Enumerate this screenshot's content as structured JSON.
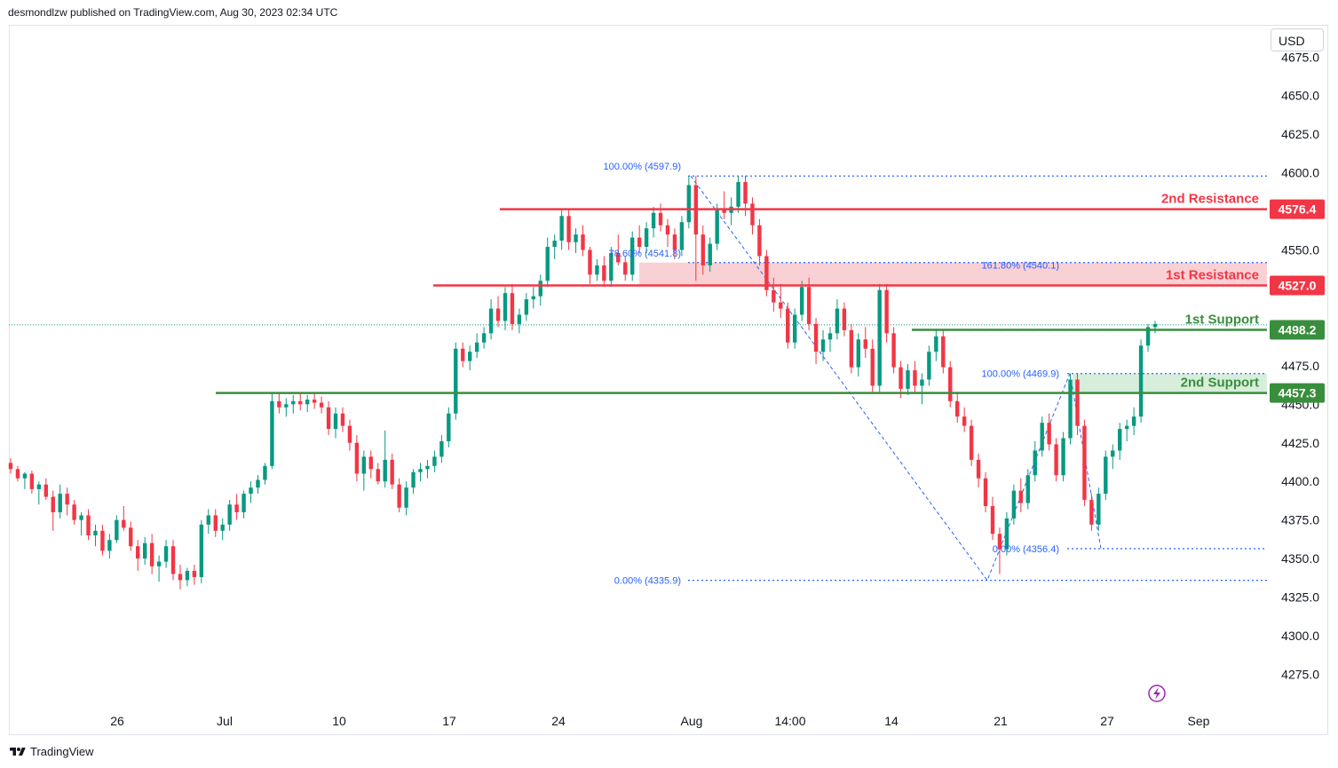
{
  "header": {
    "publisher_line": "desmondlzw published on TradingView.com, Aug 30, 2023 02:34 UTC"
  },
  "toolbar": {
    "currency_label": "USD"
  },
  "footer": {
    "brand_label": "TradingView"
  },
  "colors": {
    "up": "#089981",
    "down": "#f23645",
    "resistance": "#f23645",
    "support": "#388e3c",
    "fib": "#2962ff",
    "resistance_zone": "#f8c8cc",
    "support_zone": "#d3ecd6",
    "grid_text": "#131722"
  },
  "chart_data": {
    "type": "candlestick",
    "y_axis": {
      "ticks": [
        "4675.0",
        "4650.0",
        "4625.0",
        "4600.0",
        "4575.0",
        "4550.0",
        "4525.0",
        "4500.0",
        "4475.0",
        "4450.0",
        "4425.0",
        "4400.0",
        "4375.0",
        "4350.0",
        "4325.0",
        "4300.0",
        "4275.0"
      ],
      "range": [
        4262,
        4680
      ]
    },
    "x_axis": {
      "ticks": [
        "26",
        "Jul",
        "10",
        "17",
        "24",
        "Aug",
        "14:00",
        "14",
        "21",
        "27",
        "Sep"
      ]
    },
    "levels": [
      {
        "name": "2nd Resistance",
        "value": 4576.4,
        "label": "4576.4",
        "kind": "resistance"
      },
      {
        "name": "1st Resistance",
        "value": 4527.0,
        "label": "4527.0",
        "kind": "resistance"
      },
      {
        "name": "1st Support",
        "value": 4498.2,
        "label": "4498.2",
        "kind": "support"
      },
      {
        "name": "2nd Support",
        "value": 4457.3,
        "label": "4457.3",
        "kind": "support"
      }
    ],
    "zones": [
      {
        "kind": "resistance",
        "from": 4527.0,
        "to": 4541.8
      },
      {
        "kind": "support",
        "from": 4457.3,
        "to": 4469.9
      }
    ],
    "fib_labels": [
      {
        "text": "100.00% (4597.9)",
        "value": 4597.9
      },
      {
        "text": "78.60% (4541.8)",
        "value": 4541.8
      },
      {
        "text": "161.80% (4540.1)",
        "value": 4540.1
      },
      {
        "text": "100.00% (4469.9)",
        "value": 4469.9
      },
      {
        "text": "0.00% (4356.4)",
        "value": 4356.4
      },
      {
        "text": "0.00% (4335.9)",
        "value": 4335.9
      }
    ],
    "last_price": 4502.0,
    "candles": [
      [
        4412,
        4415,
        4405,
        4408
      ],
      [
        4408,
        4410,
        4400,
        4402
      ],
      [
        4402,
        4406,
        4395,
        4405
      ],
      [
        4405,
        4407,
        4392,
        4395
      ],
      [
        4395,
        4400,
        4385,
        4398
      ],
      [
        4398,
        4402,
        4388,
        4390
      ],
      [
        4390,
        4394,
        4368,
        4380
      ],
      [
        4380,
        4398,
        4376,
        4392
      ],
      [
        4392,
        4396,
        4378,
        4385
      ],
      [
        4385,
        4388,
        4372,
        4375
      ],
      [
        4375,
        4380,
        4365,
        4378
      ],
      [
        4378,
        4382,
        4362,
        4365
      ],
      [
        4365,
        4372,
        4358,
        4368
      ],
      [
        4368,
        4372,
        4352,
        4355
      ],
      [
        4355,
        4366,
        4350,
        4362
      ],
      [
        4362,
        4378,
        4360,
        4375
      ],
      [
        4375,
        4384,
        4368,
        4370
      ],
      [
        4370,
        4374,
        4355,
        4358
      ],
      [
        4358,
        4362,
        4342,
        4350
      ],
      [
        4350,
        4364,
        4346,
        4360
      ],
      [
        4360,
        4366,
        4340,
        4345
      ],
      [
        4345,
        4352,
        4335,
        4348
      ],
      [
        4348,
        4362,
        4344,
        4358
      ],
      [
        4358,
        4362,
        4336,
        4340
      ],
      [
        4340,
        4346,
        4330,
        4336
      ],
      [
        4336,
        4344,
        4332,
        4342
      ],
      [
        4342,
        4346,
        4333,
        4338
      ],
      [
        4338,
        4375,
        4334,
        4372
      ],
      [
        4372,
        4382,
        4366,
        4378
      ],
      [
        4378,
        4382,
        4364,
        4368
      ],
      [
        4368,
        4376,
        4362,
        4372
      ],
      [
        4372,
        4388,
        4368,
        4385
      ],
      [
        4385,
        4392,
        4375,
        4380
      ],
      [
        4380,
        4394,
        4376,
        4392
      ],
      [
        4392,
        4400,
        4386,
        4396
      ],
      [
        4396,
        4404,
        4392,
        4401
      ],
      [
        4401,
        4412,
        4398,
        4410
      ],
      [
        4410,
        4458,
        4408,
        4452
      ],
      [
        4452,
        4458,
        4444,
        4448
      ],
      [
        4448,
        4454,
        4442,
        4450
      ],
      [
        4450,
        4456,
        4444,
        4452
      ],
      [
        4452,
        4457,
        4446,
        4450
      ],
      [
        4450,
        4456,
        4445,
        4453
      ],
      [
        4453,
        4457,
        4447,
        4451
      ],
      [
        4451,
        4455,
        4444,
        4448
      ],
      [
        4448,
        4452,
        4430,
        4434
      ],
      [
        4434,
        4448,
        4428,
        4444
      ],
      [
        4444,
        4448,
        4432,
        4436
      ],
      [
        4436,
        4440,
        4420,
        4425
      ],
      [
        4425,
        4430,
        4400,
        4405
      ],
      [
        4405,
        4420,
        4394,
        4416
      ],
      [
        4416,
        4420,
        4402,
        4408
      ],
      [
        4408,
        4412,
        4398,
        4400
      ],
      [
        4400,
        4433,
        4396,
        4414
      ],
      [
        4414,
        4418,
        4395,
        4398
      ],
      [
        4398,
        4402,
        4380,
        4383
      ],
      [
        4383,
        4400,
        4378,
        4396
      ],
      [
        4396,
        4408,
        4392,
        4406
      ],
      [
        4406,
        4412,
        4400,
        4408
      ],
      [
        4408,
        4414,
        4402,
        4410
      ],
      [
        4410,
        4420,
        4406,
        4416
      ],
      [
        4416,
        4430,
        4412,
        4426
      ],
      [
        4426,
        4448,
        4422,
        4444
      ],
      [
        4444,
        4490,
        4440,
        4486
      ],
      [
        4486,
        4490,
        4474,
        4478
      ],
      [
        4478,
        4488,
        4472,
        4484
      ],
      [
        4484,
        4496,
        4480,
        4490
      ],
      [
        4490,
        4500,
        4486,
        4496
      ],
      [
        4496,
        4518,
        4492,
        4512
      ],
      [
        4512,
        4520,
        4500,
        4504
      ],
      [
        4504,
        4526,
        4498,
        4522
      ],
      [
        4522,
        4528,
        4498,
        4502
      ],
      [
        4502,
        4512,
        4496,
        4508
      ],
      [
        4508,
        4522,
        4504,
        4518
      ],
      [
        4518,
        4526,
        4512,
        4520
      ],
      [
        4520,
        4534,
        4514,
        4530
      ],
      [
        4530,
        4558,
        4526,
        4552
      ],
      [
        4552,
        4560,
        4544,
        4556
      ],
      [
        4556,
        4576,
        4550,
        4572
      ],
      [
        4572,
        4576,
        4550,
        4555
      ],
      [
        4555,
        4564,
        4548,
        4560
      ],
      [
        4560,
        4566,
        4546,
        4550
      ],
      [
        4550,
        4552,
        4528,
        4534
      ],
      [
        4534,
        4544,
        4530,
        4540
      ],
      [
        4540,
        4546,
        4526,
        4530
      ],
      [
        4530,
        4552,
        4526,
        4548
      ],
      [
        4548,
        4560,
        4540,
        4542
      ],
      [
        4542,
        4546,
        4530,
        4534
      ],
      [
        4534,
        4562,
        4530,
        4558
      ],
      [
        4558,
        4566,
        4548,
        4552
      ],
      [
        4552,
        4568,
        4548,
        4564
      ],
      [
        4564,
        4578,
        4558,
        4574
      ],
      [
        4574,
        4580,
        4562,
        4566
      ],
      [
        4566,
        4570,
        4552,
        4560
      ],
      [
        4560,
        4564,
        4544,
        4550
      ],
      [
        4550,
        4572,
        4546,
        4568
      ],
      [
        4568,
        4598,
        4564,
        4592
      ],
      [
        4592,
        4598,
        4530,
        4560
      ],
      [
        4560,
        4566,
        4534,
        4540
      ],
      [
        4540,
        4558,
        4536,
        4554
      ],
      [
        4554,
        4580,
        4550,
        4576
      ],
      [
        4576,
        4588,
        4570,
        4574
      ],
      [
        4574,
        4584,
        4566,
        4578
      ],
      [
        4578,
        4598,
        4574,
        4594
      ],
      [
        4594,
        4598,
        4572,
        4580
      ],
      [
        4580,
        4584,
        4560,
        4566
      ],
      [
        4566,
        4570,
        4540,
        4546
      ],
      [
        4546,
        4550,
        4520,
        4524
      ],
      [
        4524,
        4532,
        4510,
        4516
      ],
      [
        4516,
        4528,
        4506,
        4512
      ],
      [
        4512,
        4516,
        4486,
        4490
      ],
      [
        4490,
        4512,
        4486,
        4508
      ],
      [
        4508,
        4530,
        4504,
        4526
      ],
      [
        4526,
        4532,
        4498,
        4502
      ],
      [
        4502,
        4506,
        4476,
        4484
      ],
      [
        4484,
        4498,
        4478,
        4492
      ],
      [
        4492,
        4500,
        4484,
        4496
      ],
      [
        4496,
        4518,
        4492,
        4512
      ],
      [
        4512,
        4516,
        4494,
        4498
      ],
      [
        4498,
        4502,
        4470,
        4474
      ],
      [
        4474,
        4496,
        4468,
        4492
      ],
      [
        4492,
        4500,
        4480,
        4486
      ],
      [
        4486,
        4492,
        4458,
        4462
      ],
      [
        4462,
        4528,
        4458,
        4524
      ],
      [
        4524,
        4528,
        4490,
        4496
      ],
      [
        4496,
        4500,
        4470,
        4474
      ],
      [
        4474,
        4478,
        4454,
        4460
      ],
      [
        4460,
        4476,
        4456,
        4472
      ],
      [
        4472,
        4478,
        4458,
        4462
      ],
      [
        4462,
        4470,
        4450,
        4466
      ],
      [
        4466,
        4488,
        4462,
        4484
      ],
      [
        4484,
        4498,
        4478,
        4494
      ],
      [
        4494,
        4498,
        4470,
        4474
      ],
      [
        4474,
        4478,
        4448,
        4452
      ],
      [
        4452,
        4458,
        4438,
        4442
      ],
      [
        4442,
        4448,
        4432,
        4436
      ],
      [
        4436,
        4440,
        4410,
        4414
      ],
      [
        4414,
        4418,
        4396,
        4402
      ],
      [
        4402,
        4406,
        4380,
        4384
      ],
      [
        4384,
        4390,
        4362,
        4366
      ],
      [
        4366,
        4370,
        4340,
        4356
      ],
      [
        4356,
        4380,
        4352,
        4376
      ],
      [
        4376,
        4398,
        4372,
        4394
      ],
      [
        4394,
        4402,
        4380,
        4386
      ],
      [
        4386,
        4408,
        4382,
        4404
      ],
      [
        4404,
        4426,
        4400,
        4420
      ],
      [
        4420,
        4442,
        4416,
        4438
      ],
      [
        4438,
        4444,
        4420,
        4424
      ],
      [
        4424,
        4428,
        4400,
        4404
      ],
      [
        4404,
        4432,
        4400,
        4428
      ],
      [
        4428,
        4470,
        4424,
        4466
      ],
      [
        4466,
        4470,
        4430,
        4436
      ],
      [
        4436,
        4440,
        4384,
        4388
      ],
      [
        4388,
        4392,
        4368,
        4372
      ],
      [
        4372,
        4396,
        4368,
        4392
      ],
      [
        4392,
        4420,
        4388,
        4416
      ],
      [
        4416,
        4424,
        4408,
        4420
      ],
      [
        4420,
        4438,
        4414,
        4434
      ],
      [
        4434,
        4440,
        4426,
        4436
      ],
      [
        4436,
        4448,
        4430,
        4442
      ],
      [
        4442,
        4492,
        4438,
        4488
      ],
      [
        4488,
        4502,
        4484,
        4500
      ],
      [
        4500,
        4504,
        4496,
        4502
      ]
    ]
  }
}
